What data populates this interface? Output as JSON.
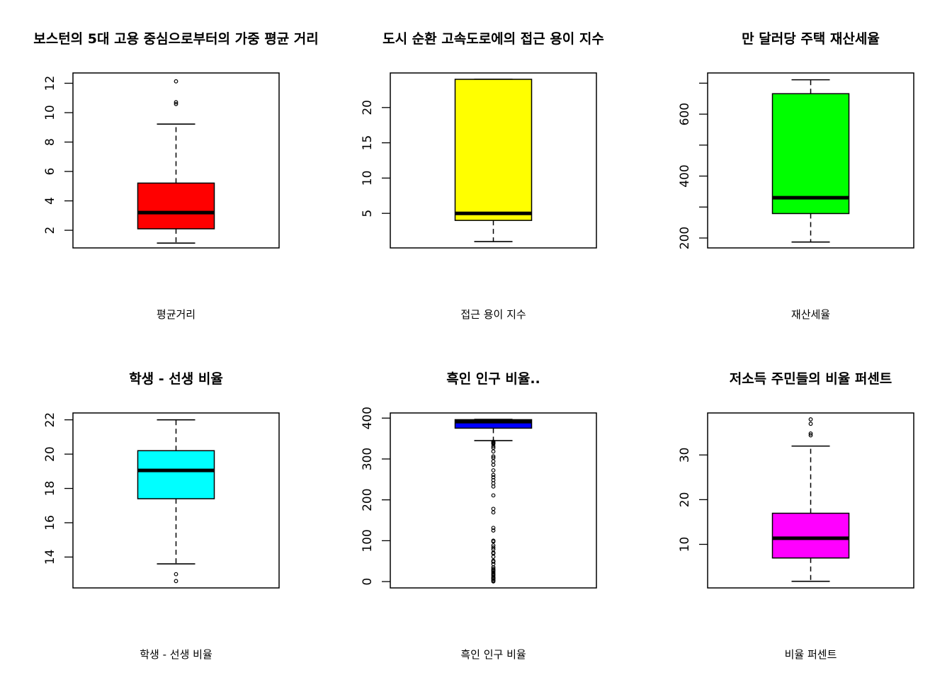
{
  "chart_data": [
    {
      "type": "boxplot",
      "title": "보스턴의 5대 고용 중심으로부터의 가중 평균 거리",
      "xlabel": "평균거리",
      "color": "#ff0000",
      "ylim": [
        0.8,
        12.7
      ],
      "yticks": [
        2,
        4,
        6,
        8,
        10,
        12
      ],
      "yticks_labels": [
        "2",
        "4",
        "6",
        "8",
        "10",
        "12"
      ],
      "box": {
        "whisker_low": 1.13,
        "q1": 2.1,
        "median": 3.2,
        "q3": 5.21,
        "whisker_high": 9.22
      },
      "outliers": [
        10.59,
        10.71,
        12.13
      ]
    },
    {
      "type": "boxplot",
      "title": "도시 순환 고속도로에의 접근 용이 지수",
      "xlabel": "접근 용이 지수",
      "color": "#ffff00",
      "ylim": [
        0.1,
        24.9
      ],
      "yticks": [
        5,
        10,
        15,
        20
      ],
      "yticks_labels": [
        "5",
        "10",
        "15",
        "20"
      ],
      "box": {
        "whisker_low": 1,
        "q1": 4,
        "median": 5,
        "q3": 24,
        "whisker_high": 24
      },
      "outliers": []
    },
    {
      "type": "boxplot",
      "title": "만 달러당 주택 재산세율",
      "xlabel": "재산세율",
      "color": "#00ff00",
      "ylim": [
        168,
        733
      ],
      "yticks": [
        200,
        300,
        400,
        500,
        600,
        700
      ],
      "yticks_labels": [
        "200",
        "",
        "400",
        "",
        "600",
        ""
      ],
      "box": {
        "whisker_low": 187,
        "q1": 279,
        "median": 330,
        "q3": 666,
        "whisker_high": 711
      },
      "outliers": []
    },
    {
      "type": "boxplot",
      "title": "학생 - 선생 비율",
      "xlabel": "학생 - 선생 비율",
      "color": "#00ffff",
      "ylim": [
        12.2,
        22.4
      ],
      "yticks": [
        14,
        16,
        18,
        20,
        22
      ],
      "yticks_labels": [
        "14",
        "16",
        "18",
        "20",
        "22"
      ],
      "box": {
        "whisker_low": 13.6,
        "q1": 17.4,
        "median": 19.05,
        "q3": 20.2,
        "whisker_high": 22
      },
      "outliers": [
        12.6,
        13.0
      ]
    },
    {
      "type": "boxplot",
      "title": "흑인 인구 비율..",
      "xlabel": "흑인 인구 비율",
      "color": "#0000ff",
      "ylim": [
        -15.5,
        412.6
      ],
      "yticks": [
        0,
        100,
        200,
        300,
        400
      ],
      "yticks_labels": [
        "0",
        "100",
        "200",
        "300",
        "400"
      ],
      "box": {
        "whisker_low": 344.9,
        "q1": 375.4,
        "median": 391.4,
        "q3": 396.2,
        "whisker_high": 396.9
      },
      "outliers": [
        0.32,
        2.5,
        3.5,
        6.7,
        7.7,
        9.3,
        10.5,
        14.0,
        16.5,
        18.8,
        21.6,
        24.7,
        27.3,
        28.8,
        31.5,
        35.0,
        43.1,
        48.5,
        50.9,
        60.7,
        68.9,
        70.8,
        79.0,
        83.5,
        88.3,
        97.9,
        100.2,
        125.0,
        131.4,
        169.3,
        178.0,
        210.9,
        232.6,
        240.5,
        248.3,
        255.2,
        261.1,
        272.2,
        285.8,
        294.3,
        302.8,
        306.4,
        318.4,
        327.3,
        331.3,
        336.9,
        338.9,
        340.6,
        342.4
      ]
    },
    {
      "type": "boxplot",
      "title": "저소득 주민들의 비율 퍼센트",
      "xlabel": "비율 퍼센트",
      "color": "#ff00ff",
      "ylim": [
        0.25,
        39.4
      ],
      "yticks": [
        10,
        20,
        30
      ],
      "yticks_labels": [
        "10",
        "20",
        "30"
      ],
      "box": {
        "whisker_low": 1.73,
        "q1": 6.95,
        "median": 11.36,
        "q3": 16.96,
        "whisker_high": 31.99
      },
      "outliers": [
        34.4,
        34.8,
        36.98,
        37.97
      ]
    }
  ]
}
